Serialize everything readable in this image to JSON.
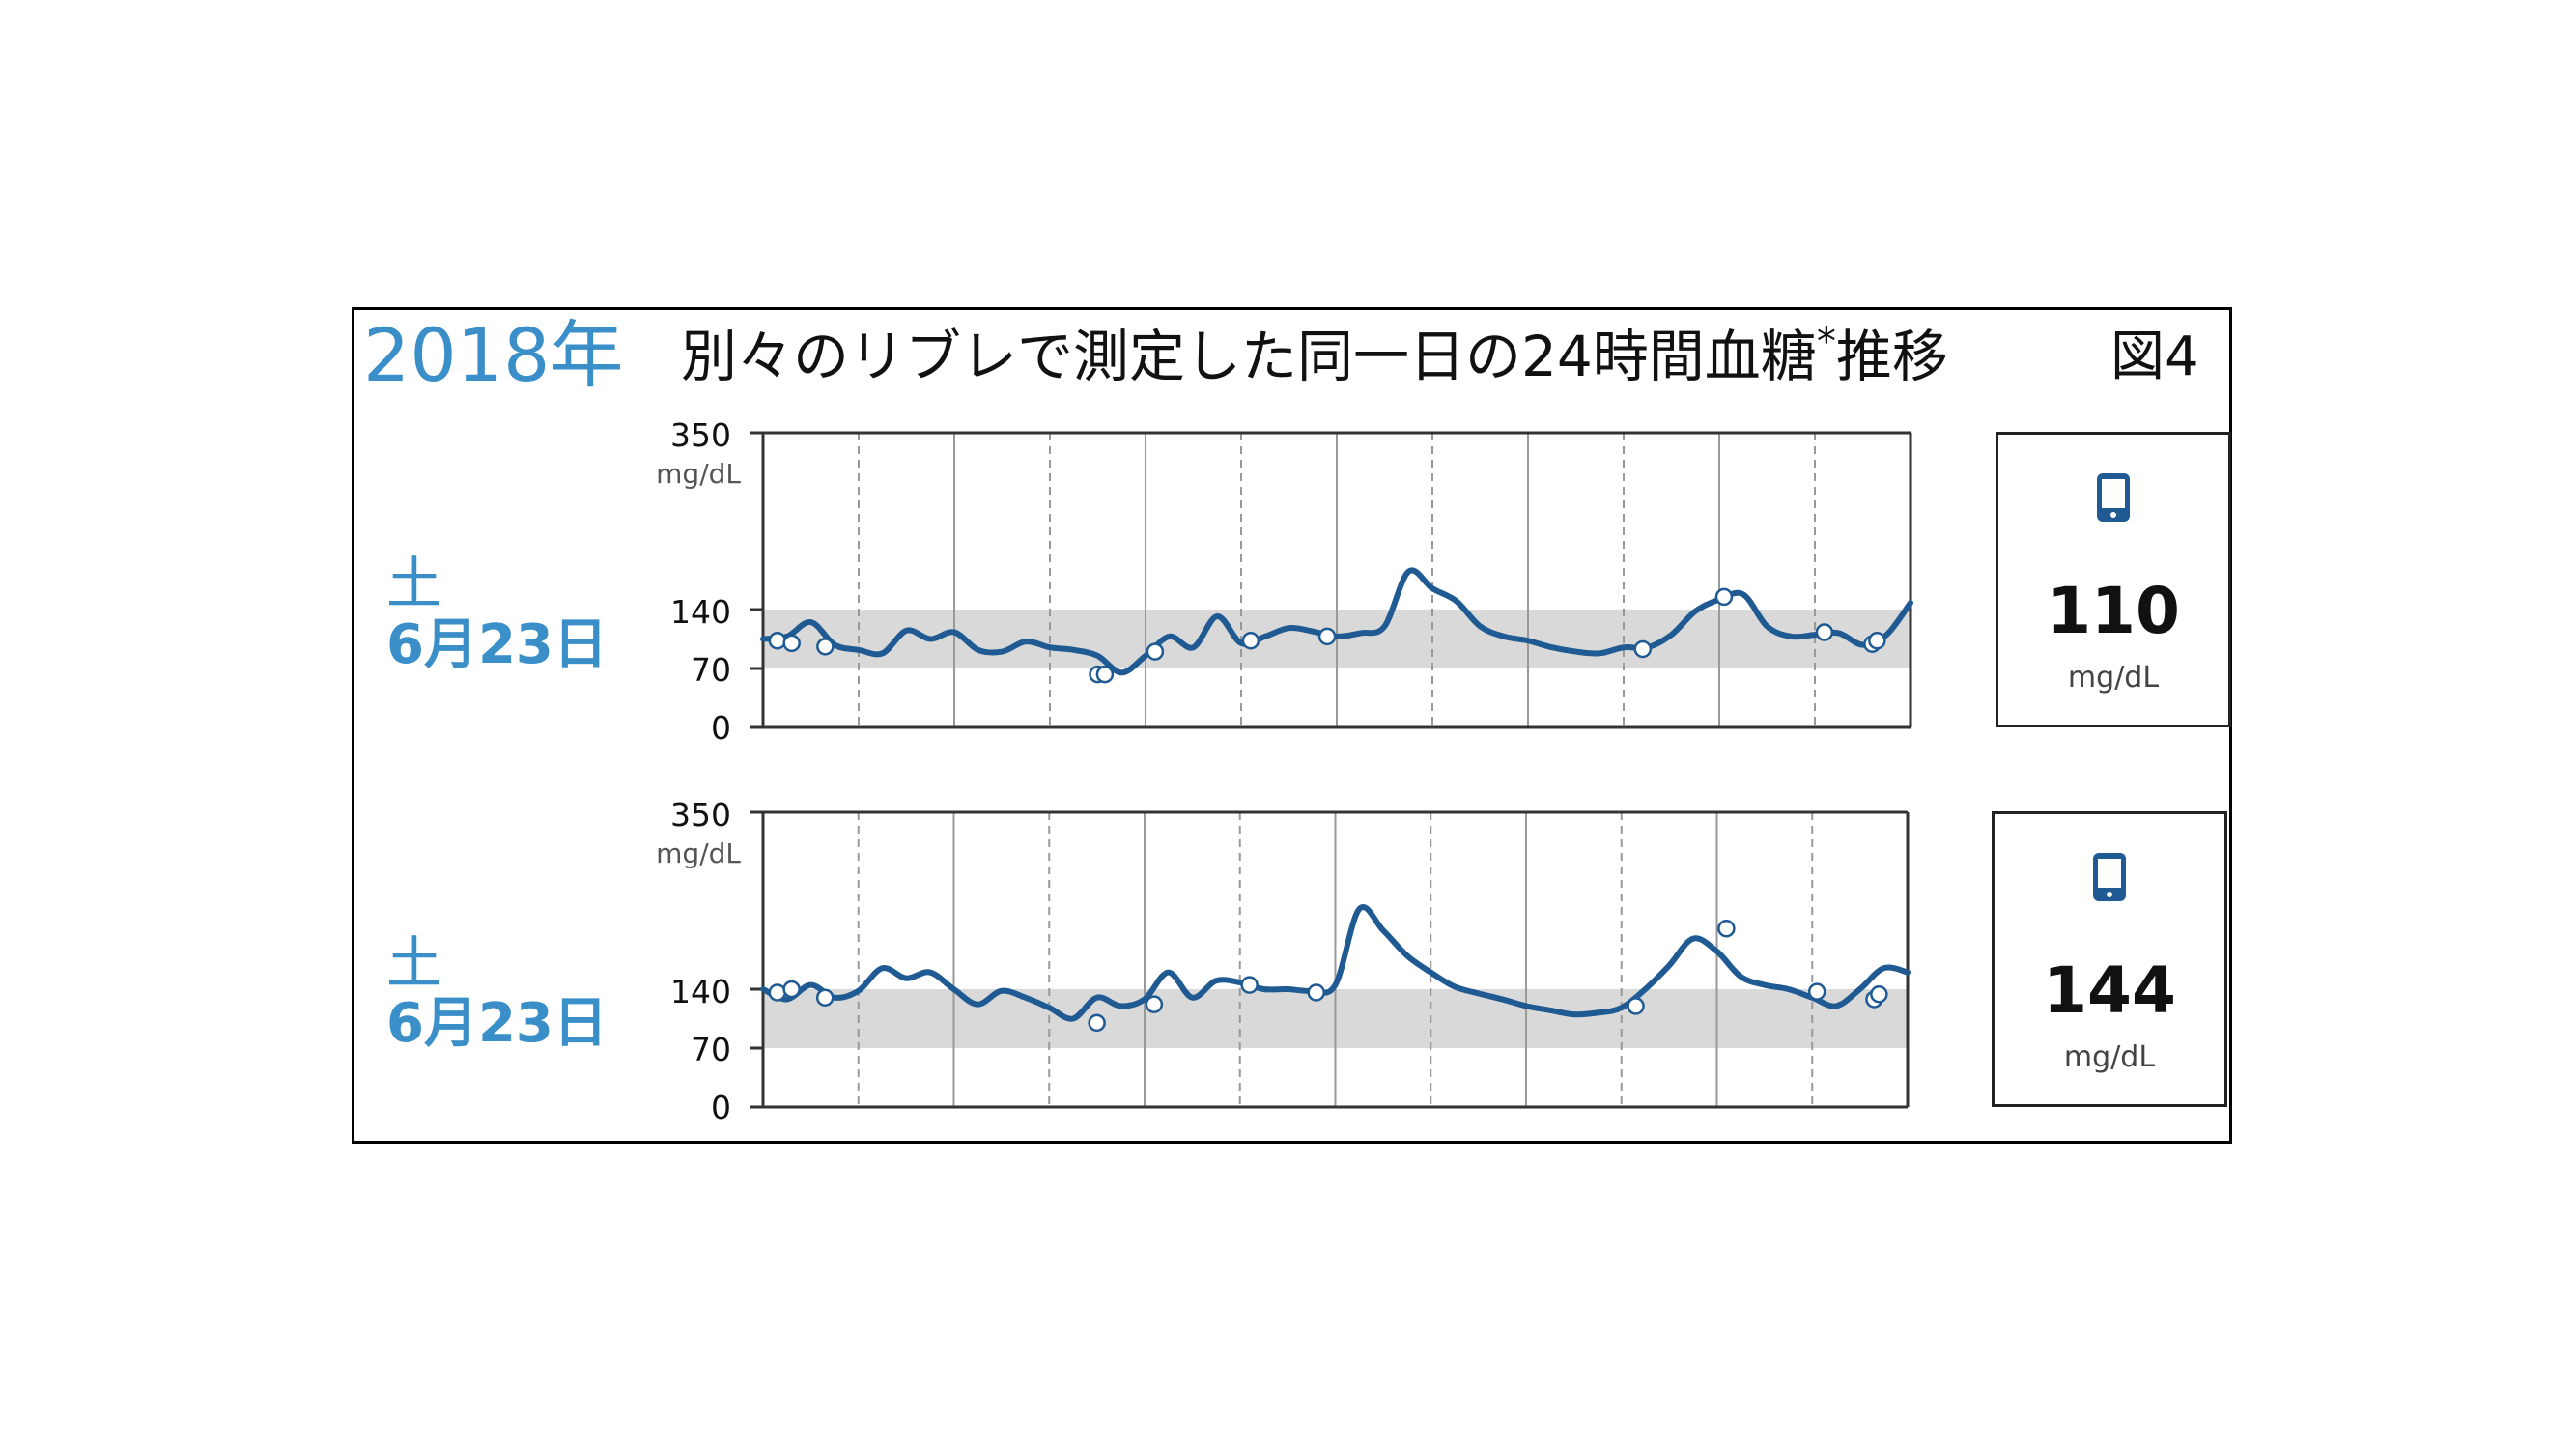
{
  "header": {
    "year_label": "2018年",
    "title": "別々のリブレで測定した同一日の24時間血糖",
    "title_marker": "*",
    "title_suffix": "推移",
    "figure_label": "図4"
  },
  "colors": {
    "accent_text": "#3a8fc9",
    "line": "#1f5a93",
    "target_band": "#d9d9d9",
    "low_mark": "#d23b3b"
  },
  "panels": [
    {
      "day_of_week": "土",
      "date": "6月23日",
      "y_max_label": "350",
      "y_unit_label": "mg/dL",
      "tick_labels": [
        "140",
        "70",
        "0"
      ],
      "current_value": "110",
      "current_unit": "mg/dL",
      "device_icon": "phone-icon"
    },
    {
      "day_of_week": "土",
      "date": "6月23日",
      "y_max_label": "350",
      "y_unit_label": "mg/dL",
      "tick_labels": [
        "140",
        "70",
        "0"
      ],
      "current_value": "144",
      "current_unit": "mg/dL",
      "device_icon": "phone-icon"
    }
  ],
  "chart_data": [
    {
      "type": "line",
      "title": "",
      "xlabel": "",
      "ylabel": "mg/dL",
      "xlim": [
        0,
        24
      ],
      "ylim": [
        0,
        350
      ],
      "target_range": [
        70,
        140
      ],
      "grid": "vertical",
      "series": [
        {
          "x": [
            0,
            0.5,
            1,
            1.5,
            2,
            2.5,
            3,
            3.5,
            4,
            4.5,
            5,
            5.5,
            6,
            6.5,
            7,
            7.5,
            8,
            8.5,
            9,
            9.5,
            10,
            10.5,
            11,
            11.5,
            12,
            12.5,
            13,
            13.5,
            14,
            14.5,
            15,
            15.5,
            16,
            16.5,
            17,
            17.5,
            18,
            18.5,
            19,
            19.5,
            20,
            20.5,
            21,
            21.5,
            22,
            22.5,
            23,
            23.5,
            24
          ],
          "values": [
            105,
            108,
            125,
            98,
            92,
            88,
            115,
            105,
            113,
            92,
            90,
            102,
            95,
            92,
            85,
            65,
            85,
            108,
            95,
            132,
            100,
            108,
            118,
            114,
            108,
            112,
            120,
            185,
            165,
            150,
            120,
            108,
            103,
            95,
            90,
            88,
            95,
            95,
            110,
            138,
            152,
            158,
            120,
            108,
            110,
            112,
            98,
            110,
            148
          ]
        }
      ],
      "scan_points": [
        {
          "x": 0.3,
          "y": 103
        },
        {
          "x": 0.6,
          "y": 100
        },
        {
          "x": 1.3,
          "y": 96
        },
        {
          "x": 7.0,
          "y": 63
        },
        {
          "x": 7.15,
          "y": 63
        },
        {
          "x": 8.2,
          "y": 90
        },
        {
          "x": 10.2,
          "y": 103
        },
        {
          "x": 11.8,
          "y": 108
        },
        {
          "x": 18.4,
          "y": 93
        },
        {
          "x": 20.1,
          "y": 155
        },
        {
          "x": 22.2,
          "y": 113
        },
        {
          "x": 23.2,
          "y": 99
        },
        {
          "x": 23.3,
          "y": 103
        }
      ]
    },
    {
      "type": "line",
      "title": "",
      "xlabel": "",
      "ylabel": "mg/dL",
      "xlim": [
        0,
        24
      ],
      "ylim": [
        0,
        350
      ],
      "target_range": [
        70,
        140
      ],
      "grid": "vertical",
      "series": [
        {
          "x": [
            0,
            0.5,
            1,
            1.5,
            2,
            2.5,
            3,
            3.5,
            4,
            4.5,
            5,
            5.5,
            6,
            6.5,
            7,
            7.5,
            8,
            8.5,
            9,
            9.5,
            10,
            10.5,
            11,
            11.5,
            12,
            12.5,
            13,
            13.5,
            14,
            14.5,
            15,
            15.5,
            16,
            16.5,
            17,
            17.5,
            18,
            18.5,
            19,
            19.5,
            20,
            20.5,
            21,
            21.5,
            22,
            22.5,
            23,
            23.5,
            24
          ],
          "values": [
            140,
            128,
            145,
            130,
            138,
            165,
            153,
            160,
            140,
            122,
            138,
            130,
            118,
            105,
            130,
            120,
            128,
            160,
            130,
            150,
            148,
            140,
            140,
            138,
            145,
            235,
            210,
            180,
            160,
            143,
            135,
            128,
            120,
            115,
            110,
            112,
            118,
            140,
            168,
            200,
            185,
            155,
            145,
            140,
            130,
            120,
            140,
            165,
            160
          ]
        }
      ],
      "scan_points": [
        {
          "x": 0.3,
          "y": 136
        },
        {
          "x": 0.6,
          "y": 140
        },
        {
          "x": 1.3,
          "y": 130
        },
        {
          "x": 7.0,
          "y": 100
        },
        {
          "x": 8.2,
          "y": 122
        },
        {
          "x": 10.2,
          "y": 145
        },
        {
          "x": 11.6,
          "y": 136
        },
        {
          "x": 18.3,
          "y": 120
        },
        {
          "x": 20.2,
          "y": 212
        },
        {
          "x": 22.1,
          "y": 137
        },
        {
          "x": 23.3,
          "y": 128
        },
        {
          "x": 23.4,
          "y": 134
        }
      ]
    }
  ]
}
